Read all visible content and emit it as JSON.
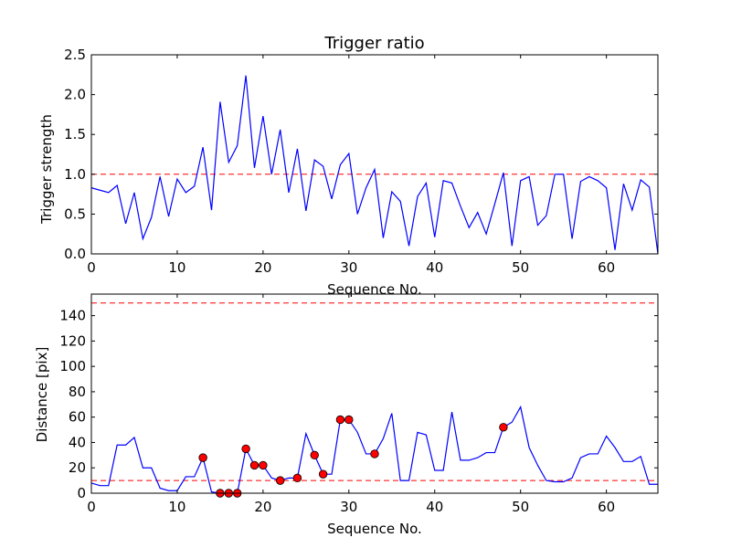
{
  "chart_data": [
    {
      "type": "line",
      "title": "Trigger ratio",
      "xlabel": "Sequence No.",
      "ylabel": "Trigger strength",
      "xlim": [
        0,
        66
      ],
      "ylim": [
        0,
        2.5
      ],
      "xticks": [
        0,
        10,
        20,
        30,
        40,
        50,
        60
      ],
      "xtick_labels": [
        "0",
        "10",
        "20",
        "30",
        "40",
        "50",
        "60"
      ],
      "yticks": [
        0,
        0.5,
        1.0,
        1.5,
        2.0,
        2.5
      ],
      "ytick_labels": [
        "0.0",
        "0.5",
        "1.0",
        "1.5",
        "2.0",
        "2.5"
      ],
      "grid": false,
      "series": [
        {
          "name": "trigger strength",
          "color": "#0000ff",
          "x": [
            0,
            1,
            2,
            3,
            4,
            5,
            6,
            7,
            8,
            9,
            10,
            11,
            12,
            13,
            14,
            15,
            16,
            17,
            18,
            19,
            20,
            21,
            22,
            23,
            24,
            25,
            26,
            27,
            28,
            29,
            30,
            31,
            32,
            33,
            34,
            35,
            36,
            37,
            38,
            39,
            40,
            41,
            42,
            43,
            44,
            45,
            46,
            47,
            48,
            49,
            50,
            51,
            52,
            53,
            54,
            55,
            56,
            57,
            58,
            59,
            60,
            61,
            62,
            63,
            64,
            65,
            66
          ],
          "y": [
            0.83,
            0.8,
            0.77,
            0.86,
            0.38,
            0.77,
            0.19,
            0.46,
            0.97,
            0.47,
            0.94,
            0.77,
            0.85,
            1.34,
            0.55,
            1.91,
            1.15,
            1.36,
            2.24,
            1.08,
            1.73,
            1.0,
            1.56,
            0.77,
            1.32,
            0.54,
            1.18,
            1.1,
            0.69,
            1.12,
            1.26,
            0.5,
            0.83,
            1.06,
            0.2,
            0.78,
            0.66,
            0.1,
            0.72,
            0.89,
            0.21,
            0.92,
            0.89,
            0.6,
            0.33,
            0.52,
            0.25,
            0.63,
            1.02,
            0.1,
            0.92,
            0.97,
            0.36,
            0.48,
            1.0,
            1.0,
            0.19,
            0.91,
            0.97,
            0.92,
            0.83,
            0.05,
            0.88,
            0.55,
            0.93,
            0.84,
            0.0
          ]
        }
      ],
      "reference_lines": [
        {
          "y": 1.0,
          "color": "#ff0000",
          "style": "dashed"
        }
      ]
    },
    {
      "type": "line",
      "title": "",
      "xlabel": "Sequence No.",
      "ylabel": "Distance [pix]",
      "xlim": [
        0,
        66
      ],
      "ylim": [
        0,
        157
      ],
      "xticks": [
        0,
        10,
        20,
        30,
        40,
        50,
        60
      ],
      "xtick_labels": [
        "0",
        "10",
        "20",
        "30",
        "40",
        "50",
        "60"
      ],
      "yticks": [
        0,
        20,
        40,
        60,
        80,
        100,
        120,
        140
      ],
      "ytick_labels": [
        "0",
        "20",
        "40",
        "60",
        "80",
        "100",
        "120",
        "140"
      ],
      "grid": false,
      "series": [
        {
          "name": "distance",
          "color": "#0000ff",
          "x": [
            0,
            1,
            2,
            3,
            4,
            5,
            6,
            7,
            8,
            9,
            10,
            11,
            12,
            13,
            14,
            15,
            16,
            17,
            18,
            19,
            20,
            21,
            22,
            23,
            24,
            25,
            26,
            27,
            28,
            29,
            30,
            31,
            32,
            33,
            34,
            35,
            36,
            37,
            38,
            39,
            40,
            41,
            42,
            43,
            44,
            45,
            46,
            47,
            48,
            49,
            50,
            51,
            52,
            53,
            54,
            55,
            56,
            57,
            58,
            59,
            60,
            61,
            62,
            63,
            64,
            65,
            66
          ],
          "y": [
            8,
            6,
            6,
            38,
            38,
            44,
            20,
            20,
            4,
            2,
            2,
            13,
            13,
            28,
            1,
            0,
            0,
            0,
            35,
            22,
            22,
            12,
            10,
            12,
            12,
            47,
            30,
            15,
            15,
            58,
            58,
            48,
            31,
            31,
            43,
            63,
            10,
            10,
            48,
            46,
            18,
            18,
            64,
            26,
            26,
            28,
            32,
            32,
            52,
            56,
            68,
            36,
            22,
            10,
            9,
            9,
            12,
            28,
            31,
            31,
            45,
            36,
            25,
            25,
            29,
            7,
            7
          ],
          "highlight_points": [
            {
              "x": 13,
              "y": 28
            },
            {
              "x": 15,
              "y": 0
            },
            {
              "x": 16,
              "y": 0
            },
            {
              "x": 17,
              "y": 0
            },
            {
              "x": 18,
              "y": 35
            },
            {
              "x": 19,
              "y": 22
            },
            {
              "x": 20,
              "y": 22
            },
            {
              "x": 22,
              "y": 10
            },
            {
              "x": 24,
              "y": 12
            },
            {
              "x": 26,
              "y": 30
            },
            {
              "x": 27,
              "y": 15
            },
            {
              "x": 29,
              "y": 58
            },
            {
              "x": 30,
              "y": 58
            },
            {
              "x": 33,
              "y": 31
            },
            {
              "x": 48,
              "y": 52
            }
          ],
          "highlight_color": "#ff0000"
        }
      ],
      "reference_lines": [
        {
          "y": 150,
          "color": "#ff0000",
          "style": "dashed"
        },
        {
          "y": 10,
          "color": "#ff0000",
          "style": "dashed"
        }
      ]
    }
  ]
}
